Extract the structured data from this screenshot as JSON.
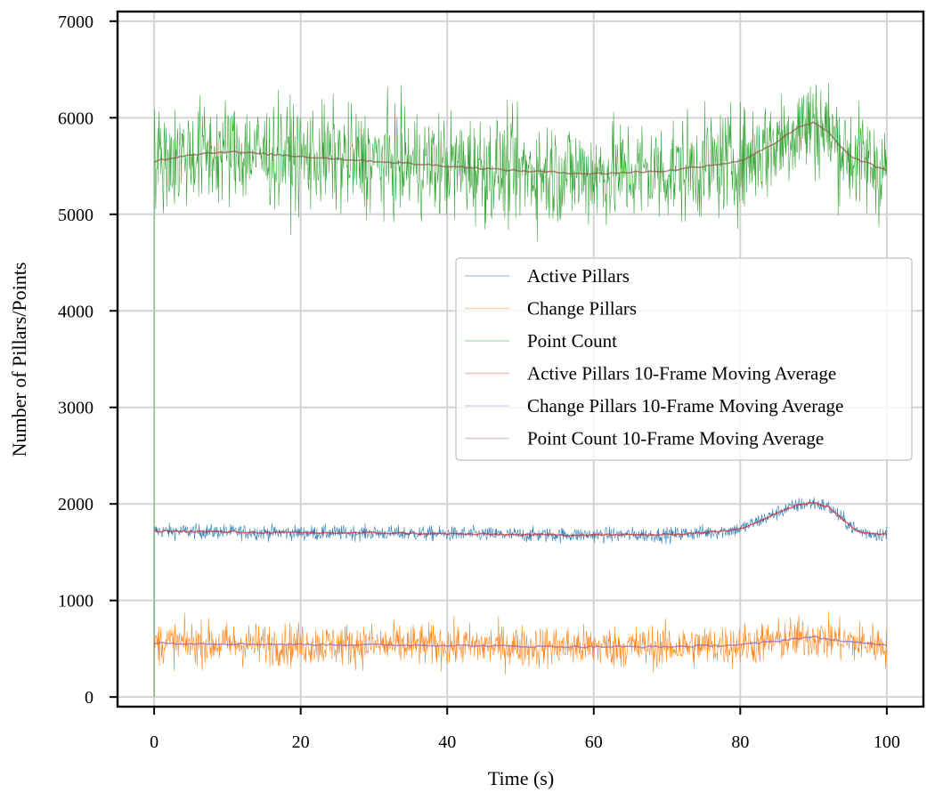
{
  "chart_data": {
    "type": "line",
    "title": "",
    "xlabel": "Time (s)",
    "ylabel": "Number of Pillars/Points",
    "xlim": [
      -5,
      105
    ],
    "ylim": [
      -100,
      7100
    ],
    "xticks": [
      0,
      20,
      40,
      60,
      80,
      100
    ],
    "yticks": [
      0,
      1000,
      2000,
      3000,
      4000,
      5000,
      6000,
      7000
    ],
    "grid": true,
    "legend_position": "center-right",
    "series": [
      {
        "name": "Active Pillars",
        "color": "#1f77b4",
        "style": "raw",
        "noise": 70,
        "x": [
          0,
          10,
          20,
          30,
          40,
          50,
          60,
          70,
          78,
          80,
          83,
          86,
          88,
          90,
          92,
          94,
          96,
          98,
          100
        ],
        "values": [
          1720,
          1710,
          1700,
          1700,
          1690,
          1680,
          1680,
          1680,
          1720,
          1740,
          1840,
          1940,
          1990,
          2010,
          1970,
          1840,
          1720,
          1690,
          1690
        ]
      },
      {
        "name": "Change Pillars",
        "color": "#ff7f0e",
        "style": "raw",
        "noise": 200,
        "x": [
          0,
          10,
          20,
          30,
          40,
          50,
          60,
          70,
          80,
          84,
          88,
          90,
          92,
          96,
          100
        ],
        "values": [
          560,
          550,
          545,
          540,
          535,
          525,
          520,
          520,
          540,
          570,
          610,
          620,
          600,
          560,
          540
        ]
      },
      {
        "name": "Point Count",
        "color": "#2ca02c",
        "style": "raw",
        "noise": 500,
        "x": [
          0,
          5,
          10,
          20,
          30,
          40,
          50,
          60,
          70,
          80,
          85,
          88,
          90,
          92,
          95,
          100
        ],
        "values": [
          5550,
          5620,
          5650,
          5600,
          5550,
          5500,
          5450,
          5420,
          5450,
          5550,
          5750,
          5900,
          5950,
          5850,
          5600,
          5450
        ]
      },
      {
        "name": "Active Pillars 10-Frame Moving Average",
        "color": "#d62728",
        "style": "average",
        "noise": 0,
        "x": [
          0,
          10,
          20,
          30,
          40,
          50,
          60,
          70,
          78,
          80,
          83,
          86,
          88,
          90,
          92,
          94,
          96,
          98,
          100
        ],
        "values": [
          1720,
          1710,
          1700,
          1700,
          1690,
          1680,
          1680,
          1680,
          1720,
          1740,
          1840,
          1940,
          1990,
          2010,
          1970,
          1840,
          1720,
          1690,
          1690
        ]
      },
      {
        "name": "Change Pillars 10-Frame Moving Average",
        "color": "#9467bd",
        "style": "average",
        "noise": 0,
        "x": [
          0,
          10,
          20,
          30,
          40,
          50,
          60,
          70,
          80,
          84,
          88,
          90,
          92,
          96,
          100
        ],
        "values": [
          560,
          550,
          545,
          540,
          535,
          525,
          520,
          520,
          540,
          570,
          610,
          620,
          600,
          560,
          540
        ]
      },
      {
        "name": "Point Count 10-Frame Moving Average",
        "color": "#8c564b",
        "style": "average",
        "noise": 0,
        "x": [
          0,
          5,
          10,
          20,
          30,
          40,
          50,
          60,
          70,
          80,
          85,
          88,
          90,
          92,
          95,
          100
        ],
        "values": [
          5550,
          5620,
          5650,
          5600,
          5550,
          5500,
          5450,
          5420,
          5450,
          5550,
          5750,
          5900,
          5950,
          5850,
          5600,
          5450
        ]
      }
    ]
  }
}
